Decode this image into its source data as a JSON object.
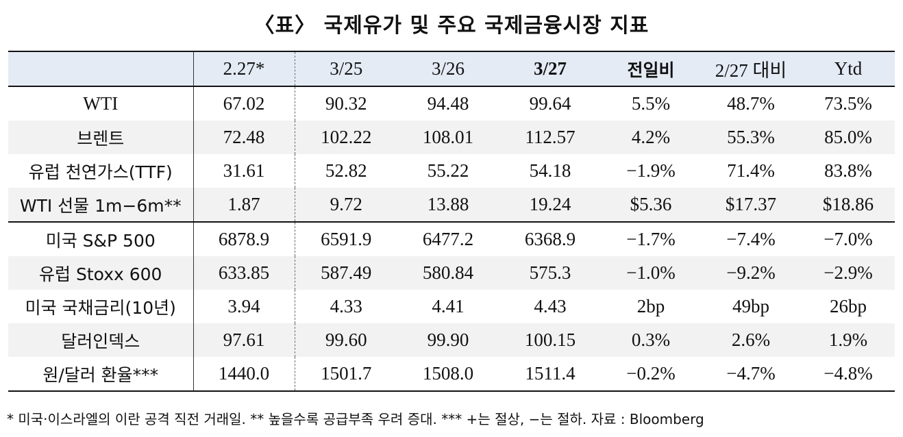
{
  "title": "〈표〉 국제유가 및 주요 국제금융시장 지표",
  "header": [
    "",
    "2.27*",
    "3/25",
    "3/26",
    "3/27",
    "전일비",
    "2/27 대비",
    "Ytd"
  ],
  "rows": [
    {
      "label": "WTI",
      "values": [
        "67.02",
        "90.32",
        "94.48",
        "99.64",
        "5.5%",
        "48.7%",
        "73.5%"
      ]
    },
    {
      "label": "브렌트",
      "values": [
        "72.48",
        "102.22",
        "108.01",
        "112.57",
        "4.2%",
        "55.3%",
        "85.0%"
      ]
    },
    {
      "label": "유럽 천연가스(TTF)",
      "values": [
        "31.61",
        "52.82",
        "55.22",
        "54.18",
        "−1.9%",
        "71.4%",
        "83.8%"
      ]
    },
    {
      "label": "WTI 선물 1m−6m**",
      "values": [
        "1.87",
        "9.72",
        "13.88",
        "19.24",
        "$5.36",
        "$17.37",
        "$18.86"
      ]
    },
    {
      "label": "미국 S&P 500",
      "values": [
        "6878.9",
        "6591.9",
        "6477.2",
        "6368.9",
        "−1.7%",
        "−7.4%",
        "−7.0%"
      ]
    },
    {
      "label": "유럽 Stoxx 600",
      "values": [
        "633.85",
        "587.49",
        "580.84",
        "575.3",
        "−1.0%",
        "−9.2%",
        "−2.9%"
      ]
    },
    {
      "label": "미국 국채금리(10년)",
      "values": [
        "3.94",
        "4.33",
        "4.41",
        "4.43",
        "2bp",
        "49bp",
        "26bp"
      ]
    },
    {
      "label": "달러인덱스",
      "values": [
        "97.61",
        "99.60",
        "99.90",
        "100.15",
        "0.3%",
        "2.6%",
        "1.9%"
      ]
    },
    {
      "label": "원/달러 환율***",
      "values": [
        "1440.0",
        "1501.7",
        "1508.0",
        "1511.4",
        "−0.2%",
        "−4.7%",
        "−4.8%"
      ]
    }
  ],
  "footnote": "* 미국·이스라엘의 이란 공격 직전 거래일. ** 높을수록 공급부족 우려 증대. *** +는 절상, −는 절하. 자료 : Bloomberg"
}
